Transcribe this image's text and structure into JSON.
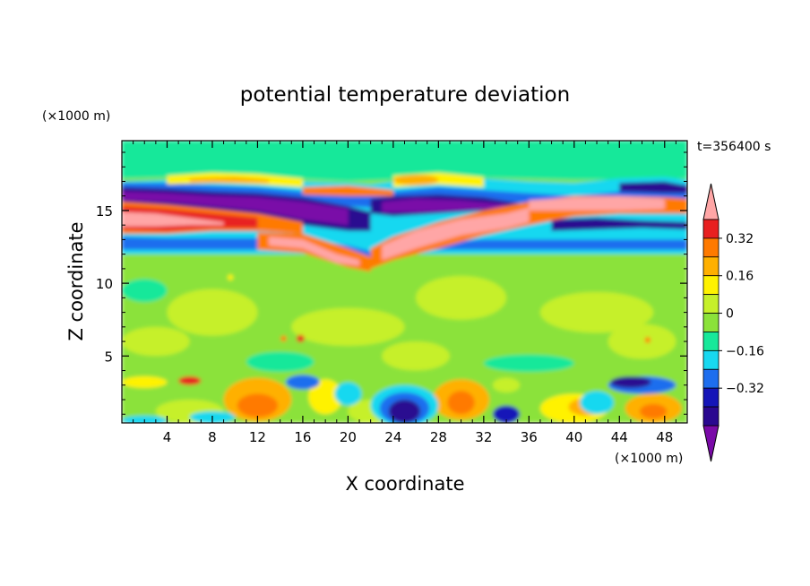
{
  "chart_data": {
    "type": "heatmap",
    "title": "potential temperature deviation",
    "time_label": "t=356400 s",
    "xlabel": "X coordinate",
    "ylabel": "Z coordinate",
    "x_unit": "(×1000 m)",
    "y_unit": "(×1000 m)",
    "xlim": [
      0,
      50
    ],
    "ylim": [
      0.4,
      19.8
    ],
    "x_ticks": [
      "4",
      "8",
      "12",
      "16",
      "20",
      "24",
      "28",
      "32",
      "36",
      "40",
      "44",
      "48"
    ],
    "y_ticks": [
      "5",
      "10",
      "15"
    ],
    "colorbar": {
      "levels": [
        "0.32",
        "0.16",
        "0",
        "−0.16",
        "−0.32"
      ],
      "extend": "both",
      "colors": [
        "#7a0aa8",
        "#2a0890",
        "#1515b8",
        "#1e6eee",
        "#18d8f0",
        "#17e89a",
        "#8be23a",
        "#c6f02a",
        "#fff200",
        "#ffb000",
        "#ff7a00",
        "#e82020",
        "#ffa6a6"
      ]
    },
    "features": [
      {
        "x": [
          0,
          50
        ],
        "z": [
          12.3,
          13.2
        ],
        "value": "-0.16"
      },
      {
        "x": [
          0,
          50
        ],
        "z": [
          15.8,
          16.6
        ],
        "value": "-0.40"
      },
      {
        "x": [
          12,
          20
        ],
        "z": [
          13.3,
          14.4
        ],
        "value": "-0.40"
      },
      {
        "x": [
          0,
          6
        ],
        "z": [
          13.6,
          14.4
        ],
        "value": "0.45"
      },
      {
        "x": [
          24,
          36
        ],
        "z": [
          13.0,
          15.0
        ],
        "value": "0.45"
      },
      {
        "x": [
          36,
          48
        ],
        "z": [
          14.8,
          15.8
        ],
        "value": "0.45"
      },
      {
        "x": [
          22,
          30
        ],
        "z": [
          15.0,
          16.0
        ],
        "value": "-0.40"
      },
      {
        "x": [
          10,
          14
        ],
        "z": [
          1.0,
          2.8
        ],
        "value": "0.24"
      },
      {
        "x": [
          24,
          28
        ],
        "z": [
          0.4,
          2.8
        ],
        "value": "-0.32"
      },
      {
        "x": [
          44,
          48
        ],
        "z": [
          2.0,
          3.5
        ],
        "value": "-0.32"
      }
    ]
  }
}
